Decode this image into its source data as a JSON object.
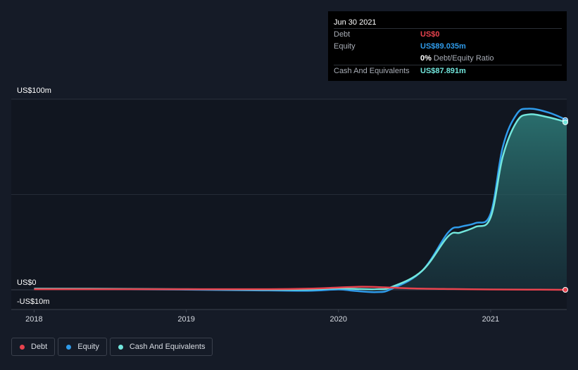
{
  "tooltip": {
    "date": "Jun 30 2021",
    "rows": [
      {
        "name": "Debt",
        "value": "US$0",
        "color": "#e8434e"
      },
      {
        "name": "Equity",
        "value": "US$89.035m",
        "color": "#2f9bea"
      },
      {
        "name": "",
        "value": "0%",
        "sub": "Debt/Equity Ratio",
        "color": "#ffffff"
      },
      {
        "name": "Cash And Equivalents",
        "value": "US$87.891m",
        "color": "#72e6dc"
      }
    ]
  },
  "legend": [
    {
      "label": "Debt",
      "color": "#e8434e"
    },
    {
      "label": "Equity",
      "color": "#2f9bea"
    },
    {
      "label": "Cash And Equivalents",
      "color": "#72e6dc"
    }
  ],
  "chart_data": {
    "type": "area",
    "y_ticks": [
      {
        "value": 100,
        "label": "US$100m"
      },
      {
        "value": 0,
        "label": "US$0"
      },
      {
        "value": -10,
        "label": "-US$10m"
      }
    ],
    "x_ticks": [
      {
        "value": 2018.0,
        "label": "2018"
      },
      {
        "value": 2019.0,
        "label": "2019"
      },
      {
        "value": 2020.0,
        "label": "2020"
      },
      {
        "value": 2021.0,
        "label": "2021"
      }
    ],
    "xlim": [
      2017.85,
      2021.5
    ],
    "ylim": [
      -10,
      100
    ],
    "grid": true,
    "legend_position": "bottom-left",
    "series": [
      {
        "name": "Debt",
        "color": "#e8434e",
        "fill": false,
        "points": [
          [
            2018.0,
            0.3
          ],
          [
            2018.5,
            0.3
          ],
          [
            2019.0,
            0.3
          ],
          [
            2019.5,
            0.3
          ],
          [
            2019.8,
            0.6
          ],
          [
            2020.0,
            1.2
          ],
          [
            2020.15,
            1.6
          ],
          [
            2020.3,
            1.3
          ],
          [
            2020.5,
            0.7
          ],
          [
            2020.75,
            0.4
          ],
          [
            2021.0,
            0.2
          ],
          [
            2021.25,
            0.1
          ],
          [
            2021.5,
            0
          ]
        ]
      },
      {
        "name": "Equity",
        "color": "#2f9bea",
        "fill": false,
        "points": [
          [
            2018.0,
            0.5
          ],
          [
            2018.5,
            0.3
          ],
          [
            2019.0,
            0.1
          ],
          [
            2019.5,
            -0.3
          ],
          [
            2019.8,
            -0.5
          ],
          [
            2020.0,
            0.2
          ],
          [
            2020.1,
            -0.5
          ],
          [
            2020.25,
            -1.2
          ],
          [
            2020.35,
            0.5
          ],
          [
            2020.55,
            10
          ],
          [
            2020.72,
            30
          ],
          [
            2020.8,
            33
          ],
          [
            2020.9,
            35
          ],
          [
            2021.0,
            40
          ],
          [
            2021.08,
            75
          ],
          [
            2021.17,
            92
          ],
          [
            2021.25,
            95
          ],
          [
            2021.38,
            93
          ],
          [
            2021.5,
            89.035
          ]
        ]
      },
      {
        "name": "Cash And Equivalents",
        "color": "#72e6dc",
        "fill": true,
        "points": [
          [
            2018.0,
            0.6
          ],
          [
            2018.5,
            0.5
          ],
          [
            2019.0,
            0.3
          ],
          [
            2019.5,
            0.1
          ],
          [
            2019.8,
            0.2
          ],
          [
            2020.0,
            0.8
          ],
          [
            2020.1,
            0.5
          ],
          [
            2020.25,
            0.3
          ],
          [
            2020.35,
            1.5
          ],
          [
            2020.55,
            10
          ],
          [
            2020.72,
            28
          ],
          [
            2020.8,
            30
          ],
          [
            2020.9,
            33
          ],
          [
            2021.0,
            38
          ],
          [
            2021.08,
            70
          ],
          [
            2021.17,
            88
          ],
          [
            2021.25,
            92
          ],
          [
            2021.38,
            90.5
          ],
          [
            2021.5,
            87.891
          ]
        ]
      }
    ]
  }
}
